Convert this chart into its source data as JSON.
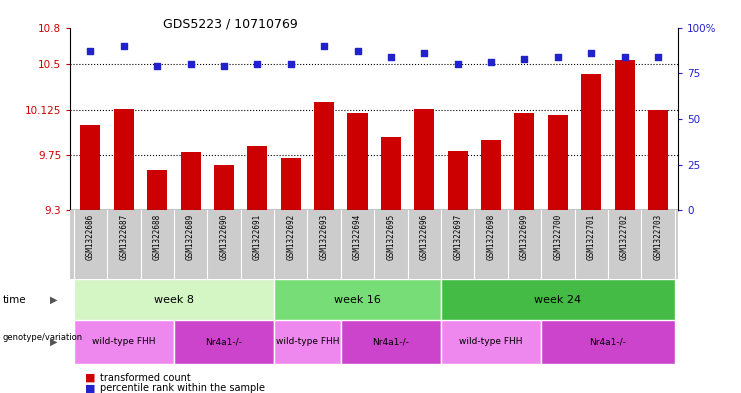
{
  "title": "GDS5223 / 10710769",
  "samples": [
    "GSM1322686",
    "GSM1322687",
    "GSM1322688",
    "GSM1322689",
    "GSM1322690",
    "GSM1322691",
    "GSM1322692",
    "GSM1322693",
    "GSM1322694",
    "GSM1322695",
    "GSM1322696",
    "GSM1322697",
    "GSM1322698",
    "GSM1322699",
    "GSM1322700",
    "GSM1322701",
    "GSM1322702",
    "GSM1322703"
  ],
  "bar_values": [
    10.0,
    10.13,
    9.63,
    9.78,
    9.67,
    9.83,
    9.73,
    10.19,
    10.1,
    9.9,
    10.13,
    9.79,
    9.88,
    10.1,
    10.08,
    10.42,
    10.53,
    10.12
  ],
  "percentile_values": [
    87,
    90,
    79,
    80,
    79,
    80,
    80,
    90,
    87,
    84,
    86,
    80,
    81,
    83,
    84,
    86,
    84,
    84
  ],
  "ylim_left": [
    9.3,
    10.8
  ],
  "ylim_right": [
    0,
    100
  ],
  "yticks_left": [
    9.3,
    9.75,
    10.125,
    10.5,
    10.8
  ],
  "ytick_labels_left": [
    "9.3",
    "9.75",
    "10.125",
    "10.5",
    "10.8"
  ],
  "yticks_right": [
    0,
    25,
    50,
    75,
    100
  ],
  "ytick_labels_right": [
    "0",
    "25",
    "50",
    "75",
    "100%"
  ],
  "hlines": [
    9.75,
    10.125,
    10.5
  ],
  "bar_color": "#cc0000",
  "dot_color": "#2222cc",
  "time_groups": [
    {
      "label": "week 8",
      "start": 0,
      "end": 6,
      "color": "#d4f5c4"
    },
    {
      "label": "week 16",
      "start": 6,
      "end": 11,
      "color": "#77dd77"
    },
    {
      "label": "week 24",
      "start": 11,
      "end": 18,
      "color": "#44bb44"
    }
  ],
  "genotype_groups": [
    {
      "label": "wild-type FHH",
      "start": 0,
      "end": 3,
      "color": "#ee88ee"
    },
    {
      "label": "Nr4a1-/-",
      "start": 3,
      "end": 6,
      "color": "#cc44cc"
    },
    {
      "label": "wild-type FHH",
      "start": 6,
      "end": 8,
      "color": "#ee88ee"
    },
    {
      "label": "Nr4a1-/-",
      "start": 8,
      "end": 11,
      "color": "#cc44cc"
    },
    {
      "label": "wild-type FHH",
      "start": 11,
      "end": 14,
      "color": "#ee88ee"
    },
    {
      "label": "Nr4a1-/-",
      "start": 14,
      "end": 18,
      "color": "#cc44cc"
    }
  ],
  "legend_label_count": "transformed count",
  "legend_label_pct": "percentile rank within the sample",
  "bg_color": "#ffffff",
  "xlabel_bg": "#cccccc"
}
